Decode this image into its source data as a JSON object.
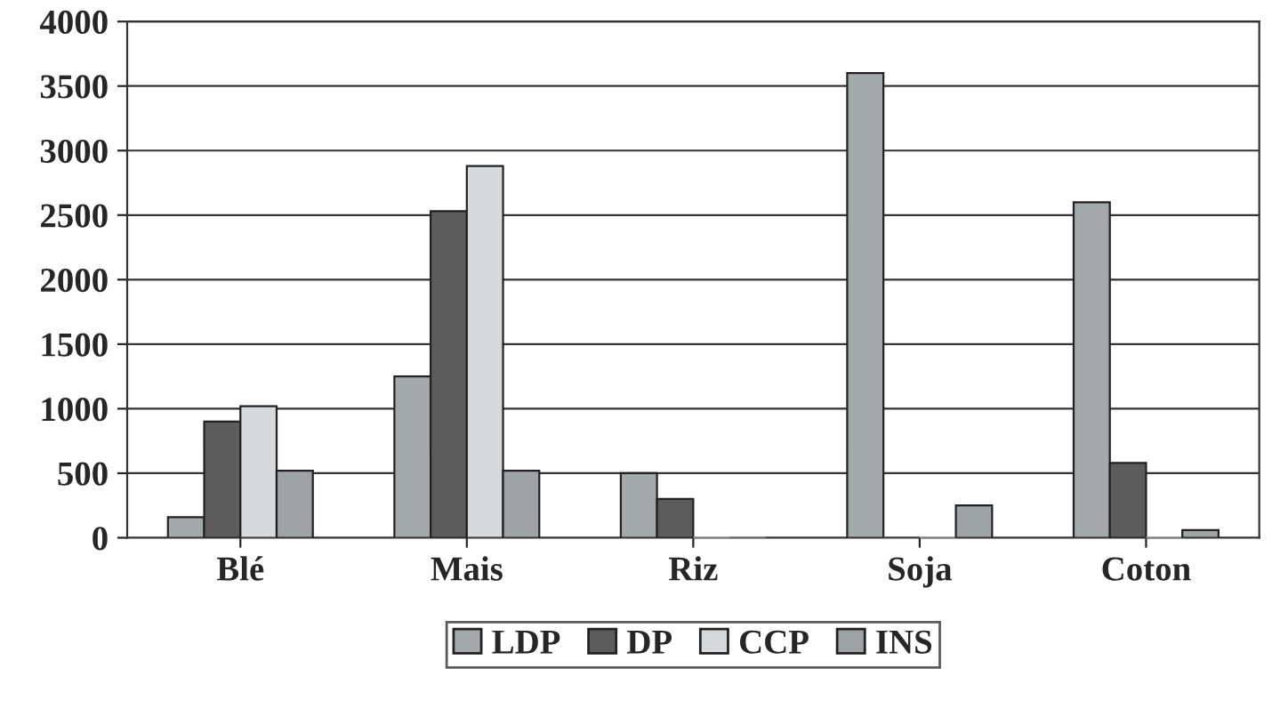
{
  "chart_data": {
    "type": "bar",
    "categories": [
      "Blé",
      "Mais",
      "Riz",
      "Soja",
      "Coton"
    ],
    "series": [
      {
        "name": "LDP",
        "color": "#a3a8ab",
        "values": [
          160,
          1250,
          500,
          3600,
          2600
        ]
      },
      {
        "name": "DP",
        "color": "#5c5c5c",
        "values": [
          900,
          2530,
          300,
          0,
          580
        ]
      },
      {
        "name": "CCP",
        "color": "#d6dadc",
        "values": [
          1020,
          2880,
          0,
          0,
          0
        ]
      },
      {
        "name": "INS",
        "color": "#9ea3a6",
        "values": [
          520,
          520,
          0,
          250,
          60
        ]
      }
    ],
    "ylim": [
      0,
      4000
    ],
    "yticks": [
      0,
      500,
      1000,
      1500,
      2000,
      2500,
      3000,
      3500,
      4000
    ],
    "grid": "y",
    "legend": "bottom"
  }
}
